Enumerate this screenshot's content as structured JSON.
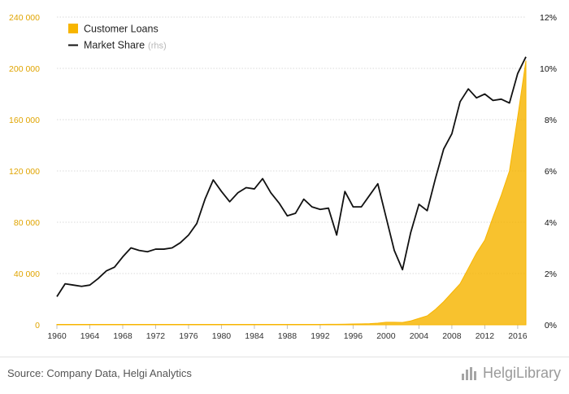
{
  "chart_data": {
    "type": "area+line",
    "title": "",
    "xlabel": "",
    "ylabel": "",
    "x_ticks": [
      "1960",
      "1964",
      "1968",
      "1972",
      "1976",
      "1980",
      "1984",
      "1988",
      "1992",
      "1996",
      "2000",
      "2004",
      "2008",
      "2012",
      "2016"
    ],
    "y_left_ticks": [
      "0",
      "40 000",
      "80 000",
      "120 000",
      "160 000",
      "200 000",
      "240 000"
    ],
    "y_right_ticks": [
      "0%",
      "2%",
      "4%",
      "6%",
      "8%",
      "10%",
      "12%"
    ],
    "ylim_left": [
      0,
      240000
    ],
    "ylim_right": [
      0,
      12
    ],
    "x": [
      1960,
      1961,
      1962,
      1963,
      1964,
      1965,
      1966,
      1967,
      1968,
      1969,
      1970,
      1971,
      1972,
      1973,
      1974,
      1975,
      1976,
      1977,
      1978,
      1979,
      1980,
      1981,
      1982,
      1983,
      1984,
      1985,
      1986,
      1987,
      1988,
      1989,
      1990,
      1991,
      1992,
      1993,
      1994,
      1995,
      1996,
      1997,
      1998,
      1999,
      2000,
      2001,
      2002,
      2003,
      2004,
      2005,
      2006,
      2007,
      2008,
      2009,
      2010,
      2011,
      2012,
      2013,
      2014,
      2015,
      2016,
      2017
    ],
    "series": [
      {
        "name": "Customer Loans",
        "type": "area",
        "axis": "left",
        "color": "#f7b500",
        "values": [
          300,
          300,
          300,
          300,
          300,
          300,
          300,
          300,
          300,
          300,
          300,
          300,
          300,
          300,
          300,
          300,
          300,
          300,
          300,
          300,
          300,
          300,
          300,
          300,
          300,
          300,
          300,
          300,
          300,
          300,
          300,
          300,
          300,
          400,
          400,
          500,
          600,
          700,
          900,
          1300,
          2000,
          2000,
          1800,
          3000,
          5000,
          7000,
          12000,
          18000,
          25000,
          32000,
          44000,
          56000,
          66000,
          84000,
          101000,
          120000,
          162000,
          206000
        ]
      },
      {
        "name": "Market Share",
        "suffix": "(rhs)",
        "type": "line",
        "axis": "right",
        "color": "#111111",
        "values": [
          1.1,
          1.6,
          1.55,
          1.5,
          1.55,
          1.8,
          2.1,
          2.25,
          2.65,
          3.0,
          2.9,
          2.85,
          2.95,
          2.95,
          3.0,
          3.2,
          3.5,
          3.95,
          4.9,
          5.65,
          5.2,
          4.8,
          5.15,
          5.35,
          5.3,
          5.7,
          5.15,
          4.75,
          4.25,
          4.35,
          4.9,
          4.6,
          4.5,
          4.55,
          3.5,
          5.2,
          4.6,
          4.6,
          5.05,
          5.5,
          4.2,
          2.9,
          2.15,
          3.6,
          4.7,
          4.45,
          5.7,
          6.85,
          7.45,
          8.7,
          9.2,
          8.85,
          9.0,
          8.75,
          8.8,
          8.65,
          9.8,
          10.45
        ]
      }
    ],
    "legend_position": "top-left",
    "grid": true
  },
  "footer": {
    "source": "Source: Company Data, Helgi Analytics",
    "brand": "HelgiLibrary"
  },
  "colors": {
    "left_axis": "#e0a400",
    "grid": "#d9d9d9",
    "area": "#f7b500"
  }
}
